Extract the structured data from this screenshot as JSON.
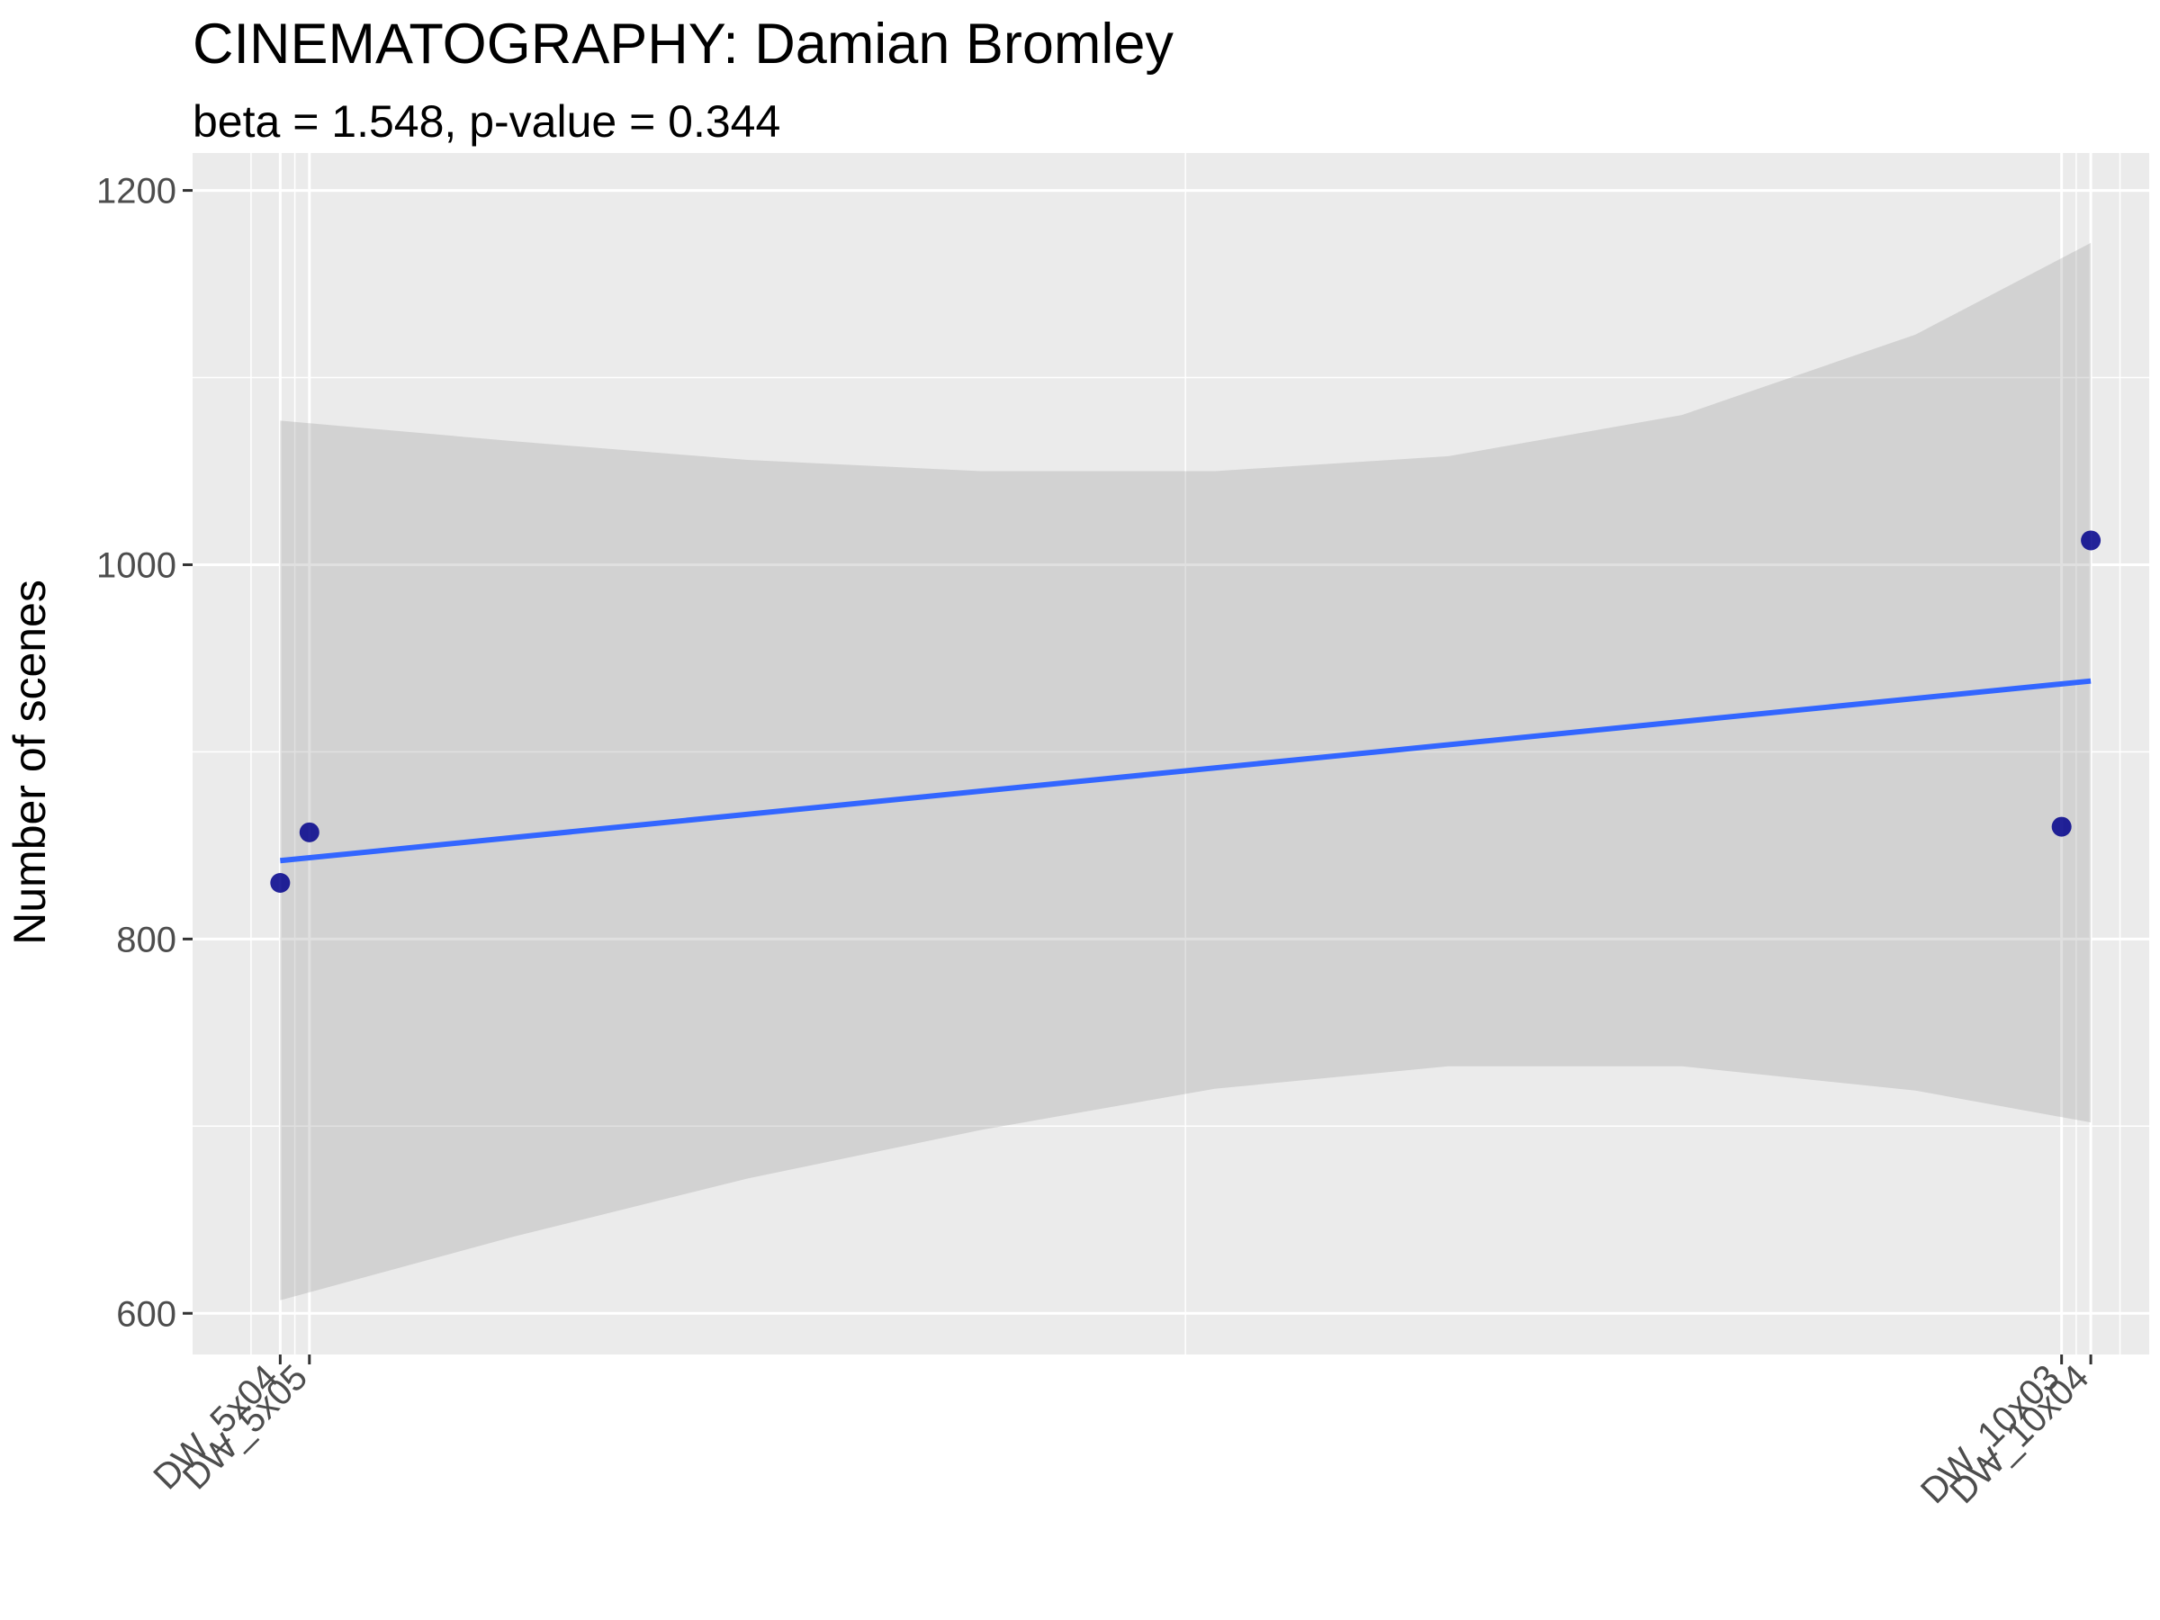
{
  "chart_data": {
    "type": "scatter",
    "title": "CINEMATOGRAPHY: Damian Bromley",
    "subtitle": "beta = 1.548, p-value = 0.344",
    "xlabel": "",
    "ylabel": "Number of scenes",
    "x_tick_labels": [
      {
        "label": "DW_5x04",
        "x": 8
      },
      {
        "label": "DW_5x05",
        "x": 9
      },
      {
        "label": "DW_10x03",
        "x": 69
      },
      {
        "label": "DW_10x04",
        "x": 70
      }
    ],
    "xlim": [
      5,
      72
    ],
    "ylim": [
      578,
      1220
    ],
    "y_ticks": [
      600,
      800,
      1000,
      1200
    ],
    "grid": true,
    "series": [
      {
        "points": [
          {
            "x": 8,
            "y": 830
          },
          {
            "x": 9,
            "y": 857
          },
          {
            "x": 69,
            "y": 860
          },
          {
            "x": 70,
            "y": 1013
          }
        ]
      }
    ],
    "trend_line": {
      "beta": 1.548,
      "intercept": 829.5,
      "x_range": [
        8,
        70
      ]
    },
    "confidence_band": [
      {
        "x": 8,
        "lower": 607,
        "upper": 1077
      },
      {
        "x": 16,
        "lower": 641,
        "upper": 1066
      },
      {
        "x": 24,
        "lower": 672,
        "upper": 1056
      },
      {
        "x": 32,
        "lower": 698,
        "upper": 1050
      },
      {
        "x": 40,
        "lower": 720,
        "upper": 1050
      },
      {
        "x": 48,
        "lower": 732,
        "upper": 1058
      },
      {
        "x": 56,
        "lower": 732,
        "upper": 1080
      },
      {
        "x": 64,
        "lower": 719,
        "upper": 1123
      },
      {
        "x": 70,
        "lower": 702,
        "upper": 1172
      }
    ],
    "colors": {
      "panel": "#ebebeb",
      "grid": "#ffffff",
      "band": "#d9d9d9",
      "line": "#3366ff",
      "point": "#00008b"
    }
  }
}
